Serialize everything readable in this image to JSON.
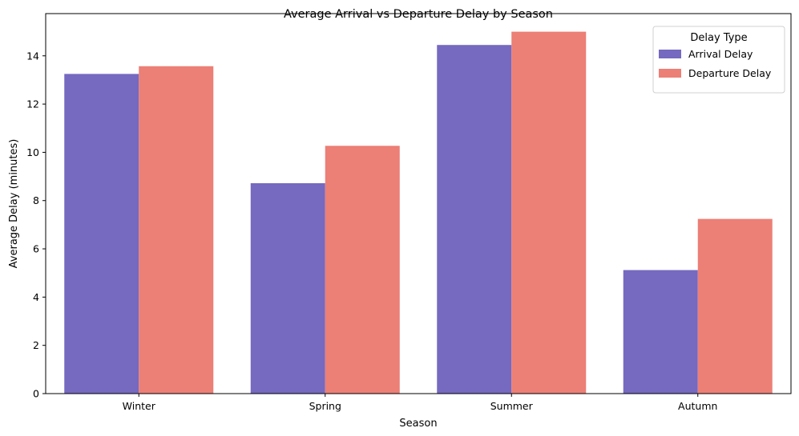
{
  "chart_data": {
    "type": "bar",
    "title": "Average Arrival vs Departure Delay by Season",
    "xlabel": "Season",
    "ylabel": "Average Delay (minutes)",
    "categories": [
      "Winter",
      "Spring",
      "Summer",
      "Autumn"
    ],
    "series": [
      {
        "name": "Arrival Delay",
        "color": "#7569C0",
        "values": [
          13.25,
          8.72,
          14.45,
          5.12
        ]
      },
      {
        "name": "Departure Delay",
        "color": "#EC7F76",
        "values": [
          13.57,
          10.27,
          15.0,
          7.24
        ]
      }
    ],
    "ylim": [
      0,
      15.75
    ],
    "yticks": [
      0,
      2,
      4,
      6,
      8,
      10,
      12,
      14
    ],
    "legend": {
      "title": "Delay Type",
      "position": "top-right"
    },
    "grid": false
  }
}
